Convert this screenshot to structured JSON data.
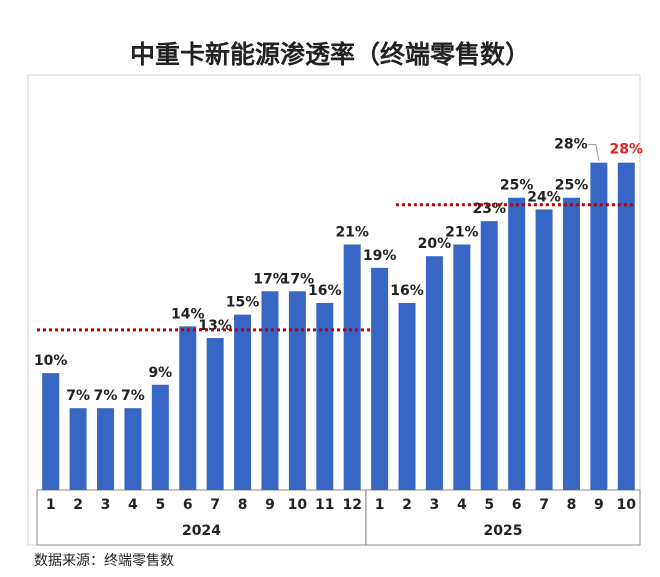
{
  "chart_data": {
    "type": "bar",
    "title": "中重卡新能源渗透率（终端零售数）",
    "source": "数据来源：终端零售数",
    "color": "#3866c4",
    "reference_line_color": "#c00000",
    "ylim": [
      0,
      35.5
    ],
    "groups": [
      {
        "label": "2024",
        "categories": [
          "1",
          "2",
          "3",
          "4",
          "5",
          "6",
          "7",
          "8",
          "9",
          "10",
          "11",
          "12"
        ],
        "values": [
          10,
          7,
          7,
          7,
          9,
          14,
          13,
          15,
          17,
          17,
          16,
          21
        ],
        "value_labels": [
          "10%",
          "7%",
          "7%",
          "7%",
          "9%",
          "14%",
          "13%",
          "15%",
          "17%",
          "17%",
          "16%",
          "21%"
        ],
        "value_label_colors": [
          "#222",
          "#222",
          "#222",
          "#222",
          "#222",
          "#222",
          "#222",
          "#222",
          "#222",
          "#222",
          "#222",
          "#222"
        ],
        "reference_line": 13.7
      },
      {
        "label": "2025",
        "categories": [
          "1",
          "2",
          "3",
          "4",
          "5",
          "6",
          "7",
          "8",
          "9",
          "10"
        ],
        "values": [
          19,
          16,
          20,
          21,
          23,
          25,
          24,
          25,
          28,
          28
        ],
        "value_labels": [
          "19%",
          "16%",
          "20%",
          "21%",
          "23%",
          "25%",
          "24%",
          "25%",
          "28%",
          "28%"
        ],
        "value_label_colors": [
          "#222",
          "#222",
          "#222",
          "#222",
          "#222",
          "#222",
          "#222",
          "#222",
          "#222",
          "#e8231f"
        ],
        "reference_line": 24.4
      }
    ]
  }
}
